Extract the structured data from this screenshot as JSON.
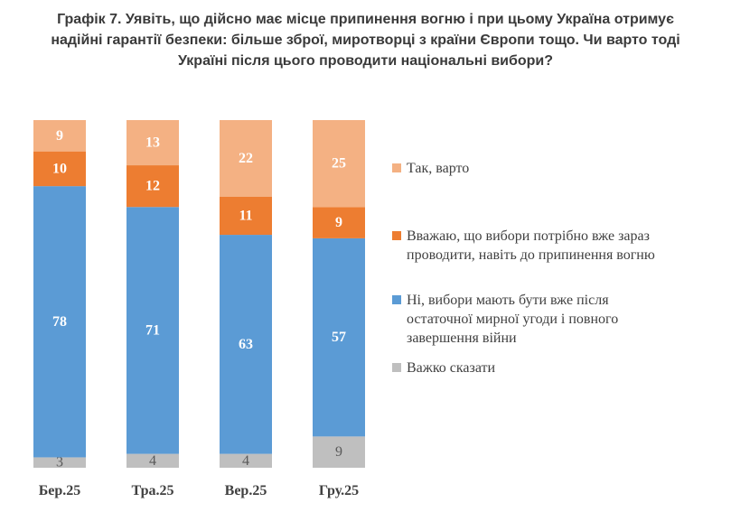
{
  "title_lines": [
    "Графік 7. Уявіть, що дійсно має місце припинення вогню і при цьому Україна отримує",
    "надійні гарантії безпеки: більше зброї, миротворці з країни Європи тощо. Чи варто тоді",
    "Україні після цього проводити національні вибори?"
  ],
  "chart_data": {
    "type": "bar",
    "stacked": true,
    "title": "Графік 7. Уявіть, що дійсно має місце припинення вогню і при цьому Україна отримує надійні гарантії безпеки: більше зброї, миротворці з країни Європи тощо. Чи варто тоді Україні після цього проводити національні вибори?",
    "categories": [
      "Бер.25",
      "Тра.25",
      "Вер.25",
      "Гру.25"
    ],
    "series": [
      {
        "name": "Важко сказати",
        "color": "#bfbfbf",
        "values": [
          3,
          4,
          4,
          9
        ]
      },
      {
        "name": "Ні, вибори мають бути вже після остаточної мирної угоди і повного завершення війни",
        "color": "#5b9bd5",
        "values": [
          78,
          71,
          63,
          57
        ]
      },
      {
        "name": "Вважаю, що вибори потрібно вже зараз проводити, навіть до припинення вогню",
        "color": "#ed7d31",
        "values": [
          10,
          12,
          11,
          9
        ]
      },
      {
        "name": "Так, варто",
        "color": "#f4b183",
        "values": [
          9,
          13,
          22,
          25
        ]
      }
    ],
    "ylim": [
      0,
      100
    ],
    "grid": false,
    "legend_position": "right"
  },
  "legend": [
    {
      "lines": [
        "Так, варто"
      ],
      "color": "#f4b183",
      "icon": "square-swatch"
    },
    {
      "lines": [
        "Вважаю, що вибори потрібно вже зараз",
        "проводити, навіть до припинення вогню"
      ],
      "color": "#ed7d31",
      "icon": "square-swatch"
    },
    {
      "lines": [
        "Ні, вибори мають бути вже після",
        "остаточної мирної угоди і повного",
        "завершення війни"
      ],
      "color": "#5b9bd5",
      "icon": "square-swatch"
    },
    {
      "lines": [
        "Важко сказати"
      ],
      "color": "#bfbfbf",
      "icon": "square-swatch"
    }
  ]
}
